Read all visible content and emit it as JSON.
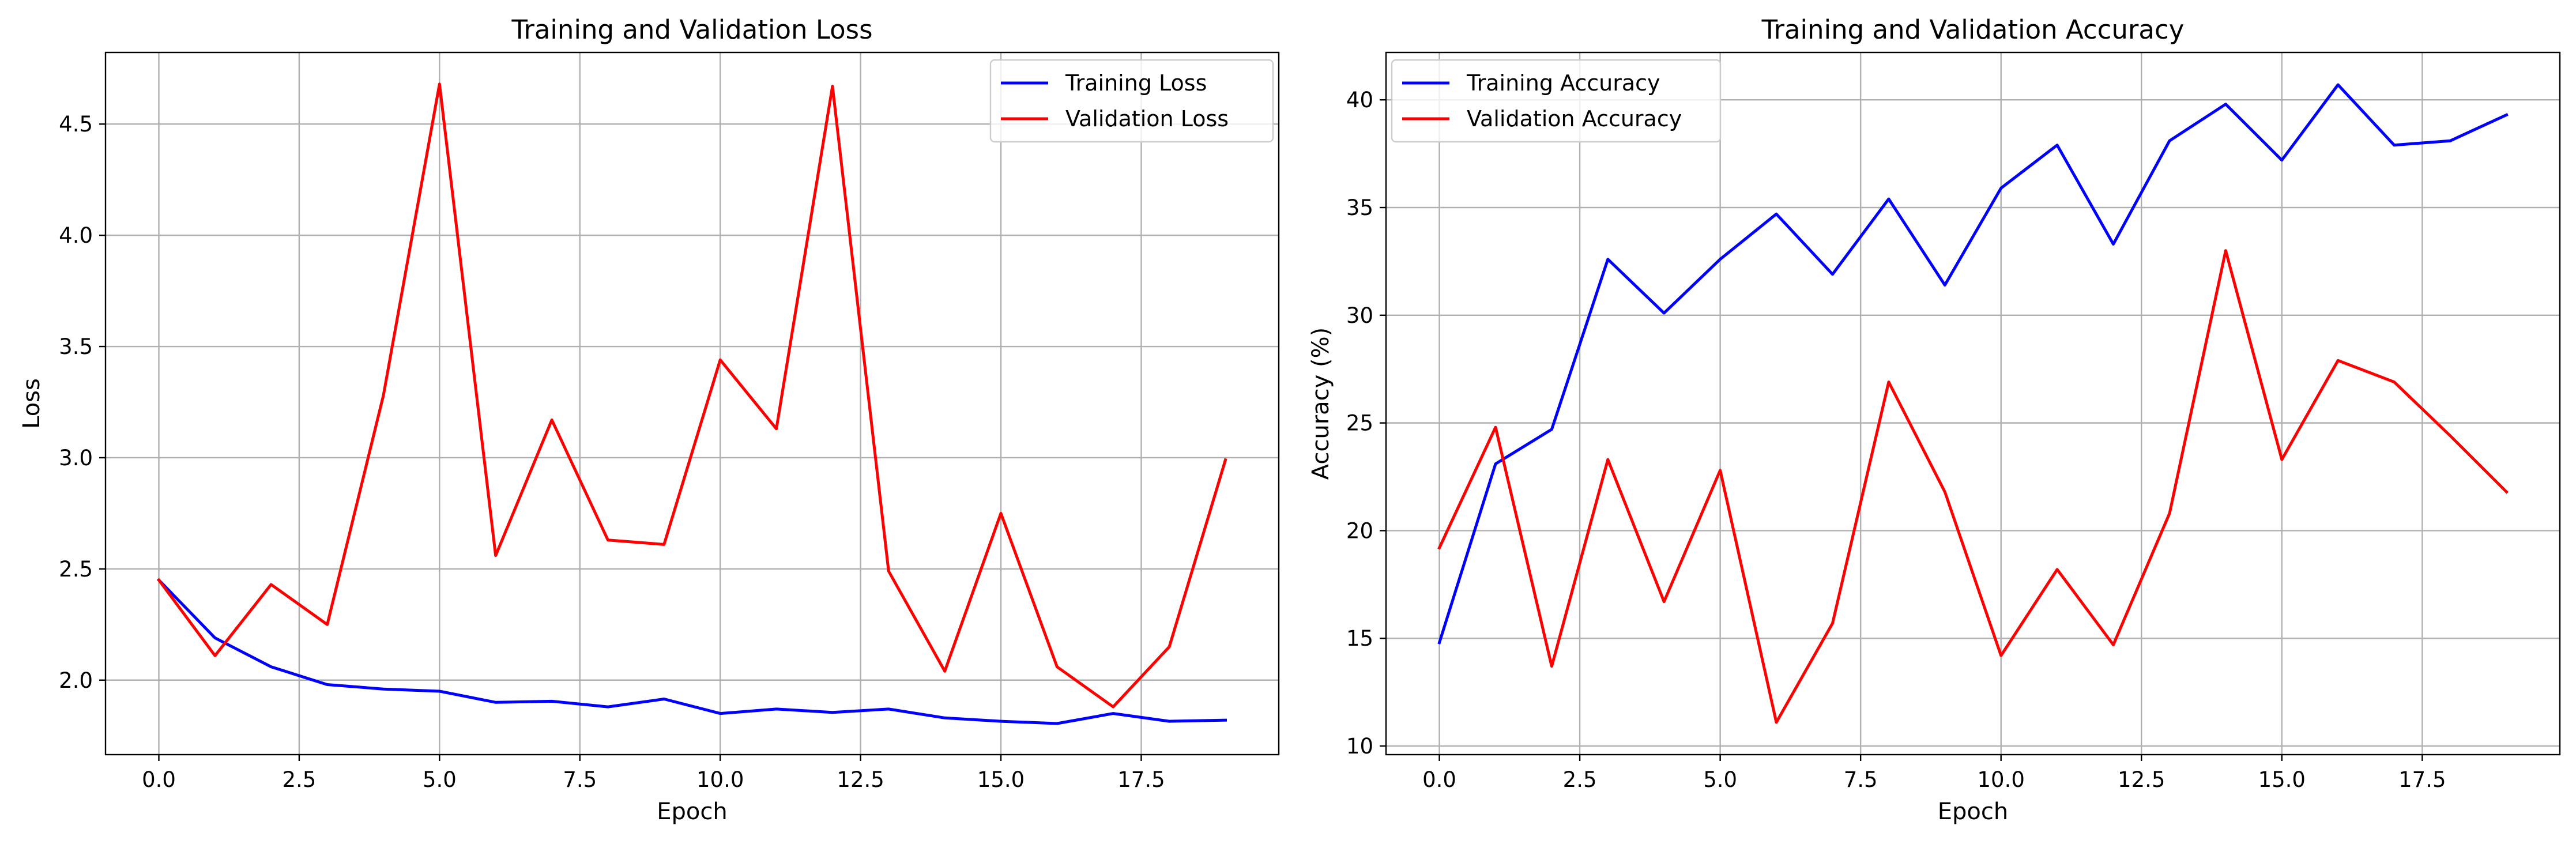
{
  "chart_data": [
    {
      "type": "line",
      "title": "Training and Validation Loss",
      "xlabel": "Epoch",
      "ylabel": "Loss",
      "x": [
        0,
        1,
        2,
        3,
        4,
        5,
        6,
        7,
        8,
        9,
        10,
        11,
        12,
        13,
        14,
        15,
        16,
        17,
        18,
        19
      ],
      "xlim": [
        -0.95,
        19.95
      ],
      "ylim": [
        1.665,
        4.822
      ],
      "xticks": [
        0.0,
        2.5,
        5.0,
        7.5,
        10.0,
        12.5,
        15.0,
        17.5
      ],
      "xtick_labels": [
        "0.0",
        "2.5",
        "5.0",
        "7.5",
        "10.0",
        "12.5",
        "15.0",
        "17.5"
      ],
      "yticks": [
        2.0,
        2.5,
        3.0,
        3.5,
        4.0,
        4.5
      ],
      "ytick_labels": [
        "2.0",
        "2.5",
        "3.0",
        "3.5",
        "4.0",
        "4.5"
      ],
      "grid": true,
      "legend_position": "top-right",
      "series": [
        {
          "name": "Training Loss",
          "color": "#0000ff",
          "values": [
            2.45,
            2.19,
            2.06,
            1.98,
            1.96,
            1.95,
            1.9,
            1.905,
            1.88,
            1.915,
            1.85,
            1.87,
            1.855,
            1.87,
            1.83,
            1.815,
            1.805,
            1.85,
            1.815,
            1.82
          ]
        },
        {
          "name": "Validation Loss",
          "color": "#ff0000",
          "values": [
            2.45,
            2.11,
            2.43,
            2.25,
            3.28,
            4.68,
            2.56,
            3.17,
            2.63,
            2.61,
            3.44,
            3.13,
            4.67,
            2.49,
            2.04,
            2.75,
            2.06,
            1.88,
            2.15,
            2.99
          ]
        }
      ]
    },
    {
      "type": "line",
      "title": "Training and Validation Accuracy",
      "xlabel": "Epoch",
      "ylabel": "Accuracy (%)",
      "x": [
        0,
        1,
        2,
        3,
        4,
        5,
        6,
        7,
        8,
        9,
        10,
        11,
        12,
        13,
        14,
        15,
        16,
        17,
        18,
        19
      ],
      "xlim": [
        -0.95,
        19.95
      ],
      "ylim": [
        9.6,
        42.2
      ],
      "xticks": [
        0.0,
        2.5,
        5.0,
        7.5,
        10.0,
        12.5,
        15.0,
        17.5
      ],
      "xtick_labels": [
        "0.0",
        "2.5",
        "5.0",
        "7.5",
        "10.0",
        "12.5",
        "15.0",
        "17.5"
      ],
      "yticks": [
        10,
        15,
        20,
        25,
        30,
        35,
        40
      ],
      "ytick_labels": [
        "10",
        "15",
        "20",
        "25",
        "30",
        "35",
        "40"
      ],
      "grid": true,
      "legend_position": "top-left",
      "series": [
        {
          "name": "Training Accuracy",
          "color": "#0000ff",
          "values": [
            14.8,
            23.1,
            24.7,
            32.6,
            30.1,
            32.6,
            34.7,
            31.9,
            35.4,
            31.4,
            35.9,
            37.9,
            33.3,
            38.1,
            39.8,
            37.2,
            40.7,
            37.9,
            38.1,
            39.3
          ]
        },
        {
          "name": "Validation Accuracy",
          "color": "#ff0000",
          "values": [
            19.2,
            24.8,
            13.7,
            23.3,
            16.7,
            22.8,
            11.1,
            15.7,
            26.9,
            21.8,
            14.2,
            18.2,
            14.7,
            20.8,
            33.0,
            23.3,
            27.9,
            26.9,
            24.4,
            21.8
          ]
        }
      ]
    }
  ]
}
